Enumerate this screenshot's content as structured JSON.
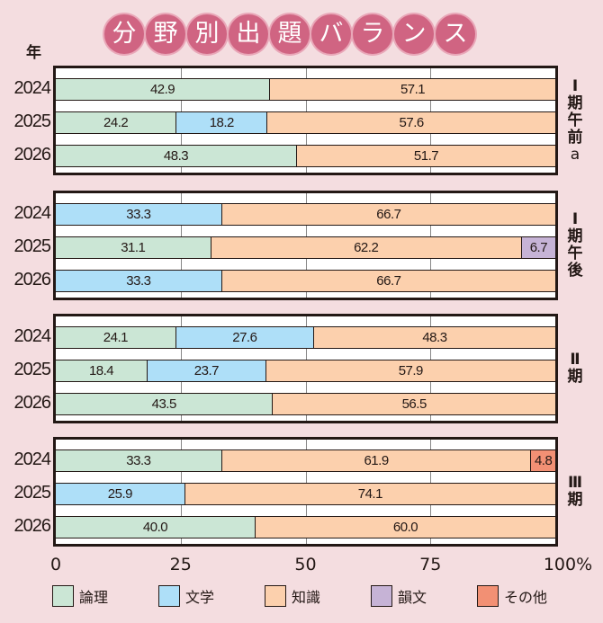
{
  "chart_data": {
    "type": "bar",
    "orientation": "horizontal-stacked-100",
    "title": "分野別出題バランス",
    "title_chars": [
      "分",
      "野",
      "別",
      "出",
      "題",
      "バ",
      "ラ",
      "ン",
      "ス"
    ],
    "ylabel": "年",
    "xlabel": "",
    "xlim": [
      0,
      100
    ],
    "xticks": [
      "0",
      "25",
      "50",
      "75",
      "100%"
    ],
    "xtick_values": [
      0,
      25,
      50,
      75,
      100
    ],
    "grid": true,
    "legend_position": "bottom",
    "series_names": [
      "論理",
      "文学",
      "知識",
      "韻文",
      "その他"
    ],
    "colors": {
      "論理": "#cbe6d5",
      "文学": "#aedff8",
      "知識": "#fcd0ad",
      "韻文": "#c6b3d6",
      "その他": "#f29074"
    },
    "groups": [
      {
        "label_lines": [
          "Ⅰ",
          "期",
          "午",
          "前",
          "a"
        ],
        "rows": [
          {
            "year": "2024",
            "segments": [
              {
                "series": "論理",
                "value": 42.9,
                "label": "42.9"
              },
              {
                "series": "知識",
                "value": 57.1,
                "label": "57.1"
              }
            ]
          },
          {
            "year": "2025",
            "segments": [
              {
                "series": "論理",
                "value": 24.2,
                "label": "24.2"
              },
              {
                "series": "文学",
                "value": 18.2,
                "label": "18.2"
              },
              {
                "series": "知識",
                "value": 57.6,
                "label": "57.6"
              }
            ]
          },
          {
            "year": "2026",
            "segments": [
              {
                "series": "論理",
                "value": 48.3,
                "label": "48.3"
              },
              {
                "series": "知識",
                "value": 51.7,
                "label": "51.7"
              }
            ]
          }
        ]
      },
      {
        "label_lines": [
          "Ⅰ",
          "期",
          "午",
          "後"
        ],
        "rows": [
          {
            "year": "2024",
            "segments": [
              {
                "series": "文学",
                "value": 33.3,
                "label": "33.3"
              },
              {
                "series": "知識",
                "value": 66.7,
                "label": "66.7"
              }
            ]
          },
          {
            "year": "2025",
            "segments": [
              {
                "series": "論理",
                "value": 31.1,
                "label": "31.1"
              },
              {
                "series": "知識",
                "value": 62.2,
                "label": "62.2"
              },
              {
                "series": "韻文",
                "value": 6.7,
                "label": "6.7"
              }
            ]
          },
          {
            "year": "2026",
            "segments": [
              {
                "series": "文学",
                "value": 33.3,
                "label": "33.3"
              },
              {
                "series": "知識",
                "value": 66.7,
                "label": "66.7"
              }
            ]
          }
        ]
      },
      {
        "label_lines": [
          "Ⅱ",
          "期"
        ],
        "rows": [
          {
            "year": "2024",
            "segments": [
              {
                "series": "論理",
                "value": 24.1,
                "label": "24.1"
              },
              {
                "series": "文学",
                "value": 27.6,
                "label": "27.6"
              },
              {
                "series": "知識",
                "value": 48.3,
                "label": "48.3"
              }
            ]
          },
          {
            "year": "2025",
            "segments": [
              {
                "series": "論理",
                "value": 18.4,
                "label": "18.4"
              },
              {
                "series": "文学",
                "value": 23.7,
                "label": "23.7"
              },
              {
                "series": "知識",
                "value": 57.9,
                "label": "57.9"
              }
            ]
          },
          {
            "year": "2026",
            "segments": [
              {
                "series": "論理",
                "value": 43.5,
                "label": "43.5"
              },
              {
                "series": "知識",
                "value": 56.5,
                "label": "56.5"
              }
            ]
          }
        ]
      },
      {
        "label_lines": [
          "Ⅲ",
          "期"
        ],
        "rows": [
          {
            "year": "2024",
            "segments": [
              {
                "series": "論理",
                "value": 33.3,
                "label": "33.3"
              },
              {
                "series": "知識",
                "value": 61.9,
                "label": "61.9"
              },
              {
                "series": "その他",
                "value": 4.8,
                "label": "4.8"
              }
            ]
          },
          {
            "year": "2025",
            "segments": [
              {
                "series": "文学",
                "value": 25.9,
                "label": "25.9"
              },
              {
                "series": "知識",
                "value": 74.1,
                "label": "74.1"
              }
            ]
          },
          {
            "year": "2026",
            "segments": [
              {
                "series": "論理",
                "value": 40.0,
                "label": "40.0"
              },
              {
                "series": "知識",
                "value": 60.0,
                "label": "60.0"
              }
            ]
          }
        ]
      }
    ]
  },
  "colors": {
    "background": "#f4dde0",
    "title_circle": "#d06482",
    "axis": "#231815"
  }
}
